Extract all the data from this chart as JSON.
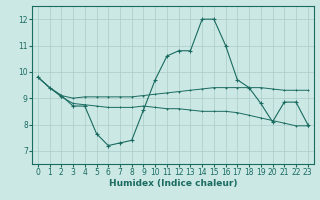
{
  "xlabel": "Humidex (Indice chaleur)",
  "bg_color": "#cce8e5",
  "line_color": "#1a6b60",
  "grid_color": "#aaccca",
  "xlim": [
    -0.5,
    23.5
  ],
  "ylim": [
    6.5,
    12.5
  ],
  "yticks": [
    7,
    8,
    9,
    10,
    11,
    12
  ],
  "xticks": [
    0,
    1,
    2,
    3,
    4,
    5,
    6,
    7,
    8,
    9,
    10,
    11,
    12,
    13,
    14,
    15,
    16,
    17,
    18,
    19,
    20,
    21,
    22,
    23
  ],
  "line1_x": [
    0,
    1,
    2,
    3,
    4,
    5,
    6,
    7,
    8,
    9,
    10,
    11,
    12,
    13,
    14,
    15,
    16,
    17,
    18,
    19,
    20,
    21,
    22,
    23
  ],
  "line1_y": [
    9.8,
    9.4,
    9.1,
    8.7,
    8.7,
    7.65,
    7.2,
    7.3,
    7.4,
    8.55,
    9.7,
    10.6,
    10.8,
    10.8,
    12.0,
    12.0,
    11.0,
    9.7,
    9.4,
    8.8,
    8.1,
    8.85,
    8.85,
    8.0
  ],
  "line2_x": [
    0,
    1,
    2,
    3,
    4,
    5,
    6,
    7,
    8,
    9,
    10,
    11,
    12,
    13,
    14,
    15,
    16,
    17,
    18,
    19,
    20,
    21,
    22,
    23
  ],
  "line2_y": [
    9.8,
    9.4,
    9.1,
    9.0,
    9.05,
    9.05,
    9.05,
    9.05,
    9.05,
    9.1,
    9.15,
    9.2,
    9.25,
    9.3,
    9.35,
    9.4,
    9.4,
    9.4,
    9.4,
    9.4,
    9.35,
    9.3,
    9.3,
    9.3
  ],
  "line3_x": [
    0,
    1,
    2,
    3,
    4,
    5,
    6,
    7,
    8,
    9,
    10,
    11,
    12,
    13,
    14,
    15,
    16,
    17,
    18,
    19,
    20,
    21,
    22,
    23
  ],
  "line3_y": [
    9.8,
    9.4,
    9.05,
    8.8,
    8.75,
    8.7,
    8.65,
    8.65,
    8.65,
    8.7,
    8.65,
    8.6,
    8.6,
    8.55,
    8.5,
    8.5,
    8.5,
    8.45,
    8.35,
    8.25,
    8.15,
    8.05,
    7.95,
    7.95
  ]
}
